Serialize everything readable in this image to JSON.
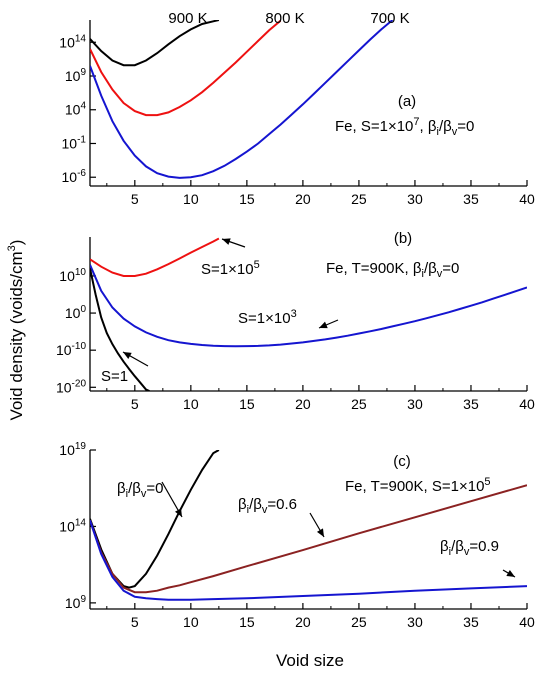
{
  "figure": {
    "ylabel": "Void density (voids/cm",
    "ylabel_sup": "3",
    "ylabel_close": ")",
    "xlabel": "Void size"
  },
  "chart_data": [
    {
      "type": "line",
      "panel_label": "(a)",
      "annotation": {
        "prefix": "Fe, S=1×10",
        "exp": "7",
        "ratio": "β",
        "sub_i": "i",
        "slash": "/β",
        "sub_v": "v",
        "suffix": "=0"
      },
      "x_range": [
        1,
        40
      ],
      "y_scale": "log",
      "y_range_log10": [
        -7.3,
        17.3
      ],
      "x_ticks": [
        "5",
        "10",
        "15",
        "20",
        "25",
        "30",
        "35",
        "40"
      ],
      "y_ticks": [
        {
          "exp": -6,
          "label": "10",
          "sup": "-6"
        },
        {
          "exp": -1,
          "label": "10",
          "sup": "-1"
        },
        {
          "exp": 4,
          "label": "10",
          "sup": "4"
        },
        {
          "exp": 9,
          "label": "10",
          "sup": "9"
        },
        {
          "exp": 14,
          "label": "10",
          "sup": "14"
        }
      ],
      "series": [
        {
          "name": "900 K",
          "color": "#000000",
          "x": [
            1,
            2,
            3,
            4,
            5,
            6,
            7,
            8,
            9,
            10,
            11,
            12,
            12.5
          ],
          "log10_y": [
            14.5,
            12.7,
            11.3,
            10.6,
            10.6,
            11.3,
            12.4,
            13.7,
            14.9,
            15.9,
            16.7,
            17.1,
            17.3
          ]
        },
        {
          "name": "800 K",
          "color": "#ee1111",
          "x": [
            1,
            2,
            3,
            4,
            5,
            6,
            7,
            8,
            9,
            10,
            11,
            12,
            13,
            14,
            15,
            16,
            17,
            18
          ],
          "log10_y": [
            13.0,
            9.6,
            7.0,
            5.0,
            3.8,
            3.2,
            3.2,
            3.6,
            4.4,
            5.4,
            6.6,
            8.0,
            9.5,
            11.0,
            12.6,
            14.2,
            15.8,
            17.2
          ]
        },
        {
          "name": "700 K",
          "color": "#1515d0",
          "x": [
            1,
            2,
            3,
            4,
            5,
            6,
            7,
            8,
            9,
            10,
            11,
            12,
            13,
            14,
            15,
            16,
            17,
            18,
            19,
            20,
            21,
            22,
            23,
            24,
            25,
            26,
            27,
            28
          ],
          "log10_y": [
            10.5,
            6.1,
            2.3,
            -0.6,
            -2.8,
            -4.4,
            -5.4,
            -5.9,
            -6.1,
            -6.0,
            -5.7,
            -5.1,
            -4.3,
            -3.3,
            -2.2,
            -1.0,
            0.4,
            1.8,
            3.3,
            4.8,
            6.4,
            8.0,
            9.6,
            11.2,
            12.8,
            14.4,
            15.9,
            17.3
          ]
        }
      ]
    },
    {
      "type": "line",
      "panel_label": "(b)",
      "annotation": {
        "prefix": "Fe, T=900K, ",
        "ratio": "β",
        "sub_i": "i",
        "slash": "/β",
        "sub_v": "v",
        "suffix": "=0"
      },
      "x_range": [
        1,
        40
      ],
      "y_scale": "log",
      "y_range_log10": [
        -21,
        20.5
      ],
      "x_ticks": [
        "5",
        "10",
        "15",
        "20",
        "25",
        "30",
        "35",
        "40"
      ],
      "y_ticks": [
        {
          "exp": -20,
          "label": "10",
          "sup": "-20"
        },
        {
          "exp": -10,
          "label": "10",
          "sup": "-10"
        },
        {
          "exp": 0,
          "label": "10",
          "sup": "0"
        },
        {
          "exp": 10,
          "label": "10",
          "sup": "10"
        }
      ],
      "series": [
        {
          "name": "S=1×10^5",
          "label_main": "S=1×10",
          "label_exp": "5",
          "color": "#ee1111",
          "x": [
            1,
            2,
            3,
            4,
            5,
            6,
            7,
            8,
            9,
            10,
            11,
            12,
            12.5
          ],
          "log10_y": [
            14.5,
            12.5,
            10.9,
            10.0,
            10.0,
            10.6,
            11.8,
            13.2,
            14.7,
            16.3,
            17.8,
            19.3,
            20.1
          ]
        },
        {
          "name": "S=1×10^3",
          "label_main": "S=1×10",
          "label_exp": "3",
          "color": "#1515d0",
          "x": [
            1,
            2,
            3,
            4,
            5,
            6,
            7,
            8,
            9,
            10,
            11,
            12,
            13,
            14,
            15,
            16,
            17,
            18,
            19,
            20,
            21,
            22,
            23,
            24,
            25,
            26,
            27,
            28,
            29,
            30,
            31,
            32,
            33,
            34,
            35,
            36,
            37,
            38,
            39,
            40
          ],
          "log10_y": [
            13.0,
            6.0,
            1.5,
            -1.5,
            -3.6,
            -5.2,
            -6.4,
            -7.3,
            -7.9,
            -8.3,
            -8.6,
            -8.8,
            -8.9,
            -8.95,
            -8.9,
            -8.85,
            -8.7,
            -8.5,
            -8.2,
            -7.9,
            -7.5,
            -7.1,
            -6.6,
            -6.1,
            -5.5,
            -4.9,
            -4.3,
            -3.6,
            -2.9,
            -2.2,
            -1.4,
            -0.6,
            0.2,
            1.1,
            2.0,
            2.9,
            3.9,
            4.9,
            5.9,
            6.9
          ]
        },
        {
          "name": "S=1",
          "label_main": "S=1",
          "label_exp": "",
          "color": "#000000",
          "x": [
            1,
            1.5,
            2,
            2.5,
            3,
            3.5,
            4,
            4.5,
            5,
            5.5,
            6,
            6.3
          ],
          "log10_y": [
            12.0,
            5.0,
            -1.2,
            -5.4,
            -8.4,
            -10.9,
            -13.1,
            -15.1,
            -17.0,
            -18.8,
            -20.6,
            -21.0
          ]
        }
      ]
    },
    {
      "type": "line",
      "panel_label": "(c)",
      "annotation": {
        "prefix": "Fe, T=900K, S=1×10",
        "exp": "5"
      },
      "x_range": [
        1,
        40
      ],
      "y_scale": "log",
      "y_range_log10": [
        8.6,
        19
      ],
      "x_ticks": [
        "5",
        "10",
        "15",
        "20",
        "25",
        "30",
        "35",
        "40"
      ],
      "y_ticks": [
        {
          "exp": 9,
          "label": "10",
          "sup": "9"
        },
        {
          "exp": 14,
          "label": "10",
          "sup": "14"
        },
        {
          "exp": 19,
          "label": "10",
          "sup": "19"
        }
      ],
      "series": [
        {
          "name": "βi/βv=0",
          "label_main": "=0",
          "color": "#000000",
          "x": [
            1,
            2,
            3,
            4,
            4.5,
            5,
            6,
            7,
            8,
            9,
            10,
            11,
            12,
            12.5
          ],
          "log10_y": [
            14.5,
            12.5,
            10.9,
            10.1,
            10.0,
            10.1,
            10.9,
            12.1,
            13.5,
            15.0,
            16.4,
            17.7,
            18.8,
            19.0
          ]
        },
        {
          "name": "βi/βv=0.6",
          "label_main": "=0.6",
          "color": "#8b2222",
          "x": [
            1,
            2,
            3,
            4,
            5,
            6,
            7,
            8,
            9,
            10,
            12,
            15,
            20,
            25,
            30,
            35,
            40
          ],
          "log10_y": [
            14.4,
            12.3,
            10.9,
            10.0,
            9.7,
            9.7,
            9.8,
            10.0,
            10.15,
            10.35,
            10.75,
            11.4,
            12.45,
            13.55,
            14.6,
            15.65,
            16.7
          ]
        },
        {
          "name": "βi/βv=0.9",
          "label_main": "=0.9",
          "color": "#1515d0",
          "x": [
            1,
            2,
            3,
            4,
            5,
            6,
            7,
            8,
            9,
            10,
            12,
            15,
            20,
            25,
            30,
            35,
            40
          ],
          "log10_y": [
            14.4,
            12.2,
            10.7,
            9.8,
            9.4,
            9.3,
            9.25,
            9.2,
            9.2,
            9.2,
            9.25,
            9.3,
            9.45,
            9.6,
            9.8,
            9.95,
            10.1
          ]
        }
      ]
    }
  ]
}
